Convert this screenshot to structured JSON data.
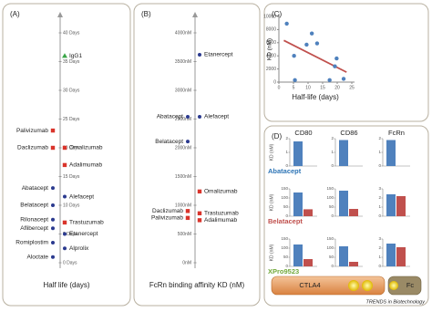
{
  "chart_data": [
    {
      "type": "dotplot",
      "label": "(A)",
      "axis_label": "Half life (days)",
      "ylim": [
        0,
        40
      ],
      "yticks": [
        {
          "value": 0,
          "label": "0 Days"
        },
        {
          "value": 5,
          "label": "5 Days"
        },
        {
          "value": 10,
          "label": "10 Days"
        },
        {
          "value": 15,
          "label": "15 Days"
        },
        {
          "value": 20,
          "label": "20 Days"
        },
        {
          "value": 25,
          "label": "25 Days"
        },
        {
          "value": 30,
          "label": "30 Days"
        },
        {
          "value": 35,
          "label": "35 Days"
        },
        {
          "value": 40,
          "label": "40 Days"
        }
      ],
      "categories": [
        "IgG1",
        "Palivizumab",
        "Daclizumab",
        "Omalizumab",
        "Adalimumab",
        "Abatacept",
        "Alefacept",
        "Belatacept",
        "Rilonacept",
        "Trastuzumab",
        "Aflibercept",
        "Etanercept",
        "Romiplostim",
        "Alprolix",
        "Aloctate"
      ],
      "values": [
        36,
        23,
        20,
        20,
        17,
        13,
        11.5,
        10,
        7.5,
        7,
        6,
        5,
        3.5,
        2.5,
        1
      ],
      "colors": [
        "#3aa648",
        "#d9342b",
        "#d9342b",
        "#d9342b",
        "#d9342b",
        "#2b3a8f",
        "#2b3a8f",
        "#2b3a8f",
        "#2b3a8f",
        "#d9342b",
        "#2b3a8f",
        "#2b3a8f",
        "#2b3a8f",
        "#2b3a8f",
        "#2b3a8f"
      ],
      "markers": [
        "triangle",
        "square",
        "square",
        "square",
        "square",
        "circle",
        "circle",
        "circle",
        "circle",
        "square",
        "circle",
        "circle",
        "circle",
        "circle",
        "circle"
      ]
    },
    {
      "type": "dotplot",
      "label": "(B)",
      "axis_label": "FcRn binding affinity KD (nM)",
      "ylim": [
        0,
        4000
      ],
      "yticks": [
        {
          "value": 0,
          "label": "0nM"
        },
        {
          "value": 500,
          "label": "500nM"
        },
        {
          "value": 1000,
          "label": "1000nM"
        },
        {
          "value": 1500,
          "label": "1500nM"
        },
        {
          "value": 2000,
          "label": "2000nM"
        },
        {
          "value": 2500,
          "label": "2500nM"
        },
        {
          "value": 3000,
          "label": "3000nM"
        },
        {
          "value": 3500,
          "label": "3500nM"
        },
        {
          "value": 4000,
          "label": "4000nM"
        }
      ],
      "categories": [
        "Etanercept",
        "Abatacept",
        "Alefacept",
        "Belatacept",
        "Omalizumab",
        "Daclizumab",
        "Palivizumab",
        "Trastuzumab",
        "Adalimumab"
      ],
      "values": [
        3620,
        2540,
        2540,
        2110,
        1240,
        900,
        780,
        860,
        740
      ],
      "colors": [
        "#2b3a8f",
        "#2b3a8f",
        "#2b3a8f",
        "#2b3a8f",
        "#d9342b",
        "#d9342b",
        "#d9342b",
        "#d9342b",
        "#d9342b"
      ],
      "markers": [
        "circle",
        "circle",
        "circle",
        "circle",
        "square",
        "square",
        "square",
        "square",
        "square"
      ]
    },
    {
      "type": "scatter",
      "label": "(C)",
      "xlabel": "Half-life (days)",
      "ylabel": "KD (nM)",
      "x": [
        2.7,
        11.3,
        13.1,
        9.5,
        5.2,
        19.8,
        19.2,
        22.2,
        5.5,
        17.4
      ],
      "values": [
        8900,
        7400,
        5900,
        5700,
        4000,
        3600,
        2400,
        500,
        300,
        300
      ],
      "xlim": [
        0,
        25
      ],
      "xticks": [
        0,
        5,
        10,
        15,
        20,
        25
      ],
      "ylim": [
        0,
        10000
      ],
      "yticks": [
        0,
        2000,
        4000,
        6000,
        8000,
        10000
      ],
      "color": "#4f81bd",
      "trendline_color": "#c0504d"
    },
    {
      "type": "bar-grid",
      "label": "(D)",
      "ylabel": "KD (nM)",
      "columns": [
        "CD80",
        "CD86",
        "FcRn"
      ],
      "series_colors": [
        "#4f81bd",
        "#c0504d"
      ],
      "rows": [
        {
          "name": "Abatacept",
          "color": "#2e75b6",
          "panels": [
            {
              "ylim": [
                0,
                2
              ],
              "yticks": [
                0,
                1,
                2
              ],
              "values": [
                1.8
              ]
            },
            {
              "ylim": [
                0,
                2
              ],
              "yticks": [
                0,
                1,
                2
              ],
              "values": [
                1.9
              ]
            },
            {
              "ylim": [
                0,
                2
              ],
              "yticks": [
                0,
                1,
                2
              ],
              "values": [
                1.9
              ]
            }
          ]
        },
        {
          "name": "Belatacept",
          "color": "#c0504d",
          "panels": [
            {
              "ylim": [
                0,
                150
              ],
              "yticks": [
                0,
                50,
                100,
                150
              ],
              "values": [
                130,
                38
              ]
            },
            {
              "ylim": [
                0,
                150
              ],
              "yticks": [
                0,
                50,
                100,
                150
              ],
              "values": [
                140,
                40
              ]
            },
            {
              "ylim": [
                0,
                3
              ],
              "yticks": [
                0,
                1,
                2,
                3
              ],
              "values": [
                2.4,
                2.2
              ]
            }
          ]
        },
        {
          "name": "XPro9523",
          "color": "#70a839",
          "panels": [
            {
              "ylim": [
                0,
                150
              ],
              "yticks": [
                0,
                50,
                100,
                150
              ],
              "values": [
                120,
                40
              ]
            },
            {
              "ylim": [
                0,
                150
              ],
              "yticks": [
                0,
                50,
                100,
                150
              ],
              "values": [
                110,
                25
              ]
            },
            {
              "ylim": [
                0,
                3
              ],
              "yticks": [
                0,
                1,
                2,
                3
              ],
              "values": [
                2.5,
                2.1
              ]
            }
          ]
        }
      ],
      "diagram": {
        "left": "CTLA4",
        "right": "Fc"
      }
    }
  ],
  "credit": "TRENDS in Biotechnology"
}
